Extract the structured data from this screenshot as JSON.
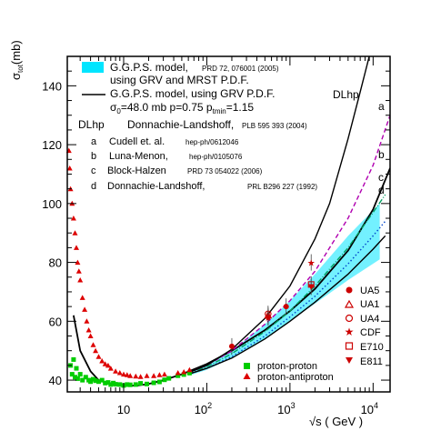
{
  "chart_data": {
    "type": "scatter",
    "xlabel": "√s ( GeV )",
    "ylabel_main": "σ",
    "ylabel_sub": "tot",
    "ylabel_unit": "(mb)",
    "x_scale": "log",
    "xlim": [
      2.1,
      16000
    ],
    "ylim": [
      36,
      150
    ],
    "x_ticks": [
      {
        "value": 10,
        "label": "10"
      },
      {
        "value": 100,
        "label": "10",
        "sup": "2"
      },
      {
        "value": 1000,
        "label": "10",
        "sup": "3"
      },
      {
        "value": 10000,
        "label": "10",
        "sup": "4"
      }
    ],
    "y_ticks": [
      {
        "value": 40,
        "label": "40"
      },
      {
        "value": 60,
        "label": "60"
      },
      {
        "value": 80,
        "label": "80"
      },
      {
        "value": 100,
        "label": "100"
      },
      {
        "value": 120,
        "label": "120"
      },
      {
        "value": 140,
        "label": "140"
      }
    ],
    "band": {
      "name_line1": "G.G.P.S. model,",
      "name_line2": "using GRV and MRST P.D.F.",
      "ref": "PRD 72, 076001 (2005)",
      "color": "#00e5ff",
      "x": [
        60,
        100,
        200,
        500,
        1000,
        2000,
        5000,
        12000
      ],
      "lower": [
        41.5,
        43.5,
        47.5,
        54,
        60,
        66,
        74,
        81
      ],
      "upper": [
        42.5,
        45,
        50,
        59,
        67,
        76,
        89,
        100
      ]
    },
    "legend_model": {
      "line1": "G.G.P.S. model, using GRV P.D.F.",
      "params_prefix": "σ",
      "params_sub0": "0",
      "params_mid": "=48.0 mb p=0.75 p",
      "params_sub1": "tmin",
      "params_end": "=1.15"
    },
    "curves": [
      {
        "id": "ggps",
        "name": "G.G.P.S. model, using GRV P.D.F.",
        "color": "#000000",
        "style": "solid",
        "x": [
          2.5,
          3,
          4,
          5,
          7,
          10,
          15,
          20,
          30,
          50,
          100,
          200,
          500,
          1000,
          2000,
          5000,
          10000,
          16000
        ],
        "y": [
          62,
          50,
          43,
          40,
          38.5,
          38,
          38.2,
          38.7,
          40,
          42,
          45.5,
          50,
          57,
          63.5,
          71,
          84,
          98,
          112
        ]
      },
      {
        "id": "a",
        "label": "a",
        "color": "#b000b0",
        "style": "dashed",
        "x": [
          60,
          100,
          200,
          500,
          1000,
          2000,
          5000,
          10000,
          16000
        ],
        "y": [
          42.5,
          45,
          50,
          59,
          67,
          77,
          95,
          113,
          130
        ]
      },
      {
        "id": "b",
        "label": "b",
        "color": "#00a060",
        "style": "dashdot",
        "x": [
          60,
          100,
          200,
          500,
          1000,
          2000,
          5000,
          10000,
          14000
        ],
        "y": [
          42,
          44.5,
          49,
          56.5,
          63.5,
          72,
          85,
          97,
          103
        ]
      },
      {
        "id": "c",
        "label": "c",
        "color": "#0044cc",
        "style": "dotted",
        "x": [
          60,
          100,
          200,
          500,
          1000,
          2000,
          5000,
          10000,
          14000
        ],
        "y": [
          42,
          44,
          48,
          55,
          61.5,
          68.5,
          79.5,
          89,
          94
        ]
      },
      {
        "id": "d",
        "label": "d",
        "color": "#000000",
        "style": "solid",
        "x": [
          60,
          100,
          200,
          500,
          1000,
          2000,
          5000,
          10000,
          14000
        ],
        "y": [
          42,
          44,
          47.5,
          54,
          60,
          66.5,
          76,
          84.5,
          89
        ]
      },
      {
        "id": "dlhp",
        "label": "DLhp",
        "color": "#000000",
        "style": "solid",
        "x": [
          60,
          100,
          200,
          500,
          1000,
          2000,
          3000,
          5000,
          7000,
          9000
        ],
        "y": [
          42.5,
          45,
          50.5,
          61,
          72,
          88,
          100,
          122,
          138,
          150
        ]
      }
    ],
    "refs": [
      {
        "key": "DLhp",
        "author": "Donnachie-Landshoff,",
        "ref": "PLB 595 393 (2004)"
      },
      {
        "key": "a",
        "author": "Cudell et. al.",
        "ref": "hep-ph/0612046"
      },
      {
        "key": "b",
        "author": "Luna-Menon,",
        "ref": "hep-ph/0105076"
      },
      {
        "key": "c",
        "author": "Block-Halzen",
        "ref": "PRD 73 054022 (2006)"
      },
      {
        "key": "d",
        "author": "Donnachie-Landshoff,",
        "ref": "PRL B296 227 (1992)"
      }
    ],
    "series": [
      {
        "name": "proton-proton",
        "marker": "square",
        "color": "#00cc00",
        "points": [
          [
            2.3,
            45
          ],
          [
            2.4,
            42
          ],
          [
            2.5,
            47
          ],
          [
            2.6,
            41
          ],
          [
            2.7,
            44
          ],
          [
            2.8,
            40.5
          ],
          [
            3,
            42
          ],
          [
            3.2,
            40
          ],
          [
            3.5,
            41
          ],
          [
            3.8,
            40
          ],
          [
            4,
            39.5
          ],
          [
            4.3,
            40.3
          ],
          [
            4.6,
            39.8
          ],
          [
            5,
            39.5
          ],
          [
            5.5,
            40
          ],
          [
            6,
            39
          ],
          [
            6.5,
            39.2
          ],
          [
            7,
            38.5
          ],
          [
            7.5,
            39
          ],
          [
            8,
            38.6
          ],
          [
            9,
            38.5
          ],
          [
            10,
            38.2
          ],
          [
            11,
            38.5
          ],
          [
            12,
            38.4
          ],
          [
            14,
            38.5
          ],
          [
            16,
            38.9
          ],
          [
            19,
            38.7
          ],
          [
            23,
            39.1
          ],
          [
            27,
            39.4
          ],
          [
            31,
            40.1
          ],
          [
            35,
            40.6
          ],
          [
            45,
            41.5
          ],
          [
            53,
            41.9
          ],
          [
            62,
            42.4
          ]
        ]
      },
      {
        "name": "proton-antiproton",
        "marker": "triangle",
        "color": "#dd0000",
        "points": [
          [
            2.2,
            118
          ],
          [
            2.25,
            112
          ],
          [
            2.3,
            105
          ],
          [
            2.4,
            100
          ],
          [
            2.5,
            95
          ],
          [
            2.6,
            90
          ],
          [
            2.7,
            85
          ],
          [
            2.8,
            80
          ],
          [
            2.9,
            77
          ],
          [
            3,
            74
          ],
          [
            3.2,
            68
          ],
          [
            3.4,
            64
          ],
          [
            3.6,
            60
          ],
          [
            3.8,
            57
          ],
          [
            4,
            55
          ],
          [
            4.3,
            52
          ],
          [
            4.6,
            50
          ],
          [
            5,
            48
          ],
          [
            5.5,
            46.5
          ],
          [
            6,
            45.5
          ],
          [
            6.5,
            45
          ],
          [
            7,
            44
          ],
          [
            8,
            43
          ],
          [
            9,
            42.5
          ],
          [
            10,
            42
          ],
          [
            11,
            41.8
          ],
          [
            12,
            41.5
          ],
          [
            14,
            41.3
          ],
          [
            16,
            41.2
          ],
          [
            19,
            41.5
          ],
          [
            23,
            41.5
          ],
          [
            27,
            41.8
          ],
          [
            31,
            42
          ],
          [
            45,
            42.5
          ],
          [
            53,
            42.8
          ],
          [
            62,
            43.5
          ]
        ]
      }
    ],
    "experiments": [
      {
        "name": "UA5",
        "marker": "filled-circle",
        "color": "#cc0000",
        "points": [
          [
            200,
            51.5
          ],
          [
            546,
            61.5
          ],
          [
            900,
            65
          ]
        ]
      },
      {
        "name": "UA1",
        "marker": "open-triangle",
        "color": "#cc0000",
        "points": [
          [
            546,
            61.9
          ]
        ]
      },
      {
        "name": "UA4",
        "marker": "open-circle",
        "color": "#cc0000",
        "points": [
          [
            546,
            62.5
          ]
        ]
      },
      {
        "name": "CDF",
        "marker": "star",
        "color": "#cc0000",
        "points": [
          [
            546,
            61.3
          ],
          [
            1800,
            80
          ]
        ]
      },
      {
        "name": "E710",
        "marker": "open-square",
        "color": "#cc0000",
        "points": [
          [
            1800,
            72.5
          ]
        ]
      },
      {
        "name": "E811",
        "marker": "filled-triangle-down",
        "color": "#cc0000",
        "points": [
          [
            1800,
            71.7
          ]
        ]
      }
    ]
  }
}
